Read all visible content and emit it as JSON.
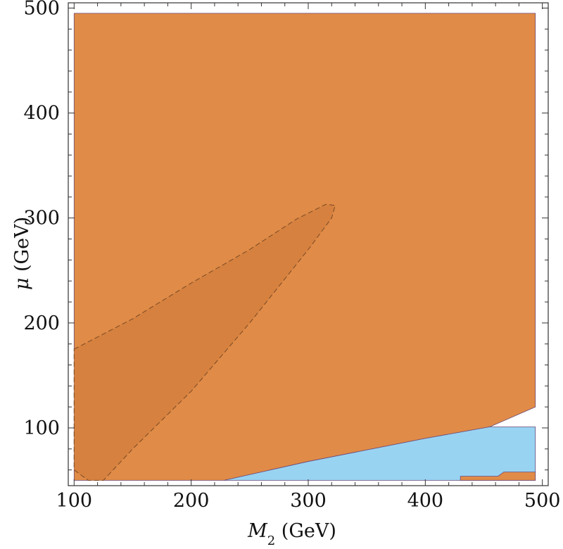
{
  "chart_data": {
    "type": "area",
    "xlabel": "M2 (GeV)",
    "xlabel_main": "M",
    "xlabel_sub": "2",
    "xlabel_unit": " (GeV)",
    "ylabel": "μ (GeV)",
    "ylabel_main": "μ",
    "ylabel_unit": " (GeV)",
    "xlim": [
      95,
      505
    ],
    "ylim": [
      45,
      505
    ],
    "xticks": [
      100,
      200,
      300,
      400,
      500
    ],
    "yticks": [
      100,
      200,
      300,
      400,
      500
    ],
    "x_minor_step": 20,
    "y_minor_step": 20,
    "grid": false,
    "colors": {
      "orange_region": "#e08b47",
      "dark_orange_region": "#d6813f",
      "blue_region": "#99d3f2",
      "dashed_contour": "#7a4a25",
      "edge": "#6a4a7a"
    },
    "regions": [
      {
        "id": "orange",
        "color": "#e08b47",
        "boundary": [
          [
            100,
            50
          ],
          [
            228,
            50
          ],
          [
            300,
            68
          ],
          [
            400,
            90
          ],
          [
            455,
            101
          ],
          [
            494,
            120
          ],
          [
            494,
            495
          ],
          [
            100,
            495
          ]
        ]
      },
      {
        "id": "blue",
        "color": "#99d3f2",
        "boundary": [
          [
            228,
            50
          ],
          [
            494,
            50
          ],
          [
            494,
            101
          ],
          [
            455,
            101
          ],
          [
            400,
            90
          ],
          [
            300,
            68
          ]
        ]
      },
      {
        "id": "orange-small",
        "color": "#e08b47",
        "boundary": [
          [
            430,
            50
          ],
          [
            494,
            50
          ],
          [
            494,
            58
          ],
          [
            467,
            58
          ],
          [
            462,
            54
          ],
          [
            430,
            54
          ]
        ]
      }
    ],
    "dashed_contour": {
      "color": "#d6813f",
      "points": [
        [
          100,
          175
        ],
        [
          150,
          204
        ],
        [
          200,
          238
        ],
        [
          250,
          270
        ],
        [
          290,
          299
        ],
        [
          315,
          313
        ],
        [
          323,
          312
        ],
        [
          320,
          300
        ],
        [
          300,
          270
        ],
        [
          250,
          200
        ],
        [
          200,
          135
        ],
        [
          150,
          80
        ],
        [
          125,
          50
        ],
        [
          112,
          50
        ],
        [
          100,
          60
        ]
      ]
    }
  }
}
